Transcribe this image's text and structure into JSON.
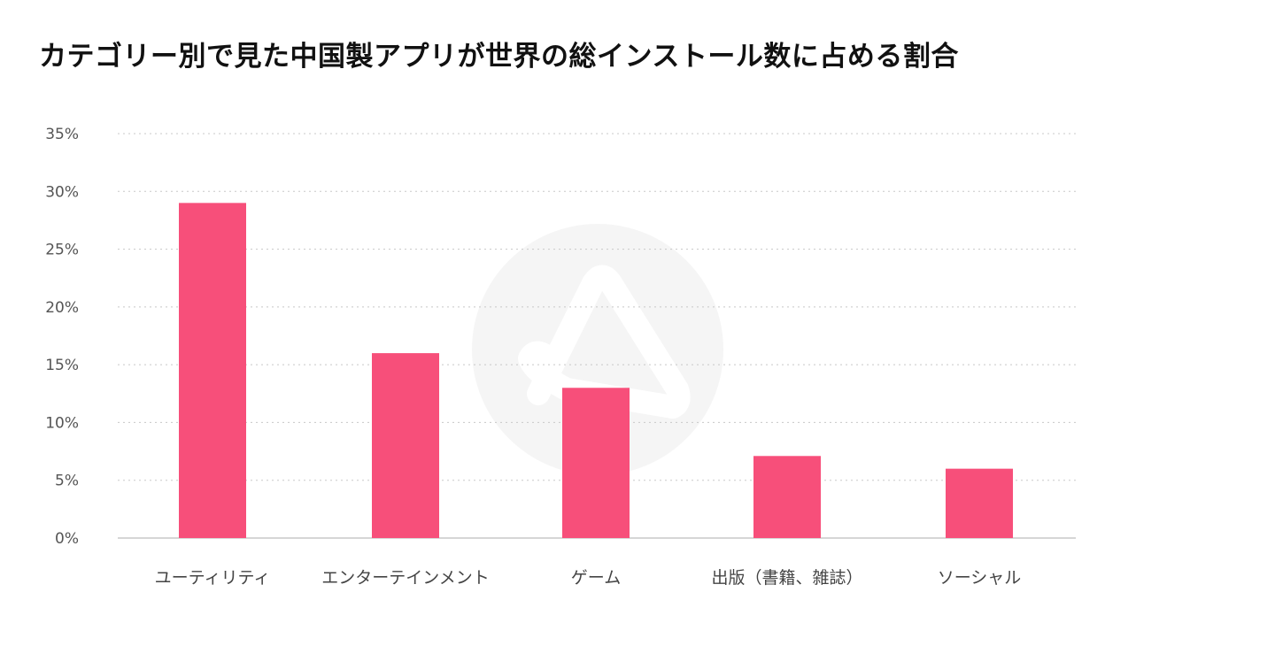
{
  "chart_data": {
    "type": "bar",
    "title": "カテゴリー別で見た中国製アプリが世界の総インストール数に占める割合",
    "xlabel": "",
    "ylabel": "",
    "categories": [
      "ユーティリティ",
      "エンターテインメント",
      "ゲーム",
      "出版（書籍、雑誌）",
      "ソーシャル"
    ],
    "values": [
      29,
      16,
      13,
      7.1,
      6
    ],
    "ylim": [
      0,
      35
    ],
    "yticks": [
      0,
      5,
      10,
      15,
      20,
      25,
      30,
      35
    ],
    "ytick_labels": [
      "0%",
      "5%",
      "10%",
      "15%",
      "20%",
      "25%",
      "30%",
      "35%"
    ],
    "grid": true,
    "legend": "none",
    "colors": {
      "bar": "#f74f7a",
      "grid": "#c8c8c8",
      "axis": "#c8c8c8",
      "watermark": "#f5f5f5"
    },
    "watermark_icon": "appmagic-logo-icon"
  }
}
